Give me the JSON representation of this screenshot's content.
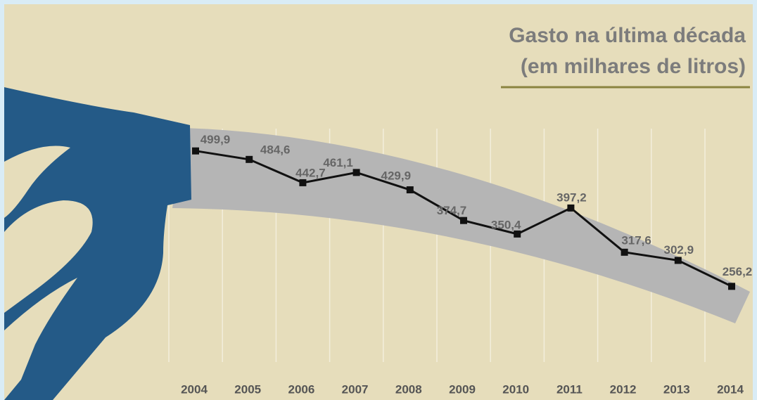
{
  "chart_data": {
    "type": "line",
    "title": "Gasto na última década",
    "subtitle": "(em milhares de litros)",
    "categories": [
      "2004",
      "2005",
      "2006",
      "2007",
      "2008",
      "2009",
      "2010",
      "2011",
      "2012",
      "2013",
      "2014"
    ],
    "values": [
      499.9,
      484.6,
      442.7,
      461.1,
      429.9,
      374.7,
      350.4,
      397.2,
      317.6,
      302.9,
      256.2
    ],
    "value_labels": [
      "499,9",
      "484,6",
      "442,7",
      "461,1",
      "429,9",
      "374,7",
      "350,4",
      "397,2",
      "317,6",
      "302,9",
      "256,2"
    ],
    "color": "#111111",
    "ylim": [
      120,
      540
    ],
    "grid": true
  }
}
